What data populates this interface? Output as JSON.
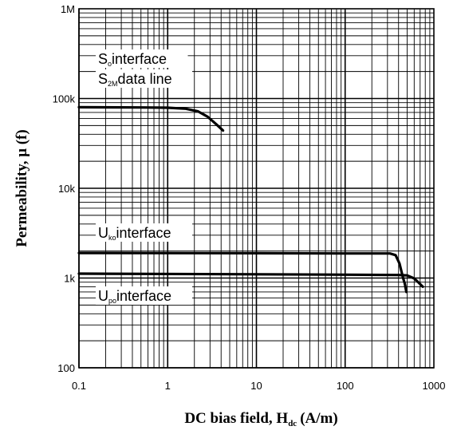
{
  "chart_data": {
    "type": "line",
    "x_scale": "log",
    "y_scale": "log",
    "xlim": [
      0.1,
      1000
    ],
    "ylim": [
      100,
      1000000
    ],
    "grid": true,
    "x_ticks": [
      {
        "value": 0.1,
        "label": "0.1"
      },
      {
        "value": 1,
        "label": "1"
      },
      {
        "value": 10,
        "label": "10"
      },
      {
        "value": 100,
        "label": "100"
      },
      {
        "value": 1000,
        "label": "1000"
      }
    ],
    "y_ticks": [
      {
        "value": 100,
        "label": "100"
      },
      {
        "value": 1000,
        "label": "1k"
      },
      {
        "value": 10000,
        "label": "10k"
      },
      {
        "value": 100000,
        "label": "100k"
      },
      {
        "value": 1000000,
        "label": "1M"
      }
    ],
    "xlabel_main": "DC bias field, H",
    "xlabel_sub": "dc",
    "xlabel_unit": "(A/m)",
    "ylabel": "Permeability,  μ (f)",
    "series": [
      {
        "label_lines": [
          {
            "main": "S",
            "sub": "o",
            "rest": "interface"
          },
          {
            "main": "S",
            "sub": "2M",
            "rest": "data line"
          }
        ],
        "points": [
          [
            0.1,
            80000
          ],
          [
            0.5,
            79500
          ],
          [
            1.0,
            79000
          ],
          [
            1.6,
            77000
          ],
          [
            2.2,
            72000
          ],
          [
            2.8,
            63000
          ],
          [
            3.5,
            52000
          ],
          [
            4.2,
            44000
          ]
        ]
      },
      {
        "label_lines": [
          {
            "main": "U",
            "sub": "ko",
            "rest": "interface"
          }
        ],
        "points": [
          [
            0.1,
            1900
          ],
          [
            10,
            1890
          ],
          [
            100,
            1880
          ],
          [
            320,
            1880
          ],
          [
            370,
            1800
          ],
          [
            410,
            1450
          ],
          [
            450,
            1000
          ],
          [
            470,
            870
          ],
          [
            490,
            700
          ]
        ]
      },
      {
        "label_lines": [
          {
            "main": "U",
            "sub": "po",
            "rest": "interface"
          }
        ],
        "points": [
          [
            0.1,
            1120
          ],
          [
            10,
            1100
          ],
          [
            100,
            1090
          ],
          [
            400,
            1080
          ],
          [
            500,
            1070
          ],
          [
            600,
            990
          ],
          [
            680,
            880
          ],
          [
            750,
            800
          ]
        ]
      }
    ]
  }
}
